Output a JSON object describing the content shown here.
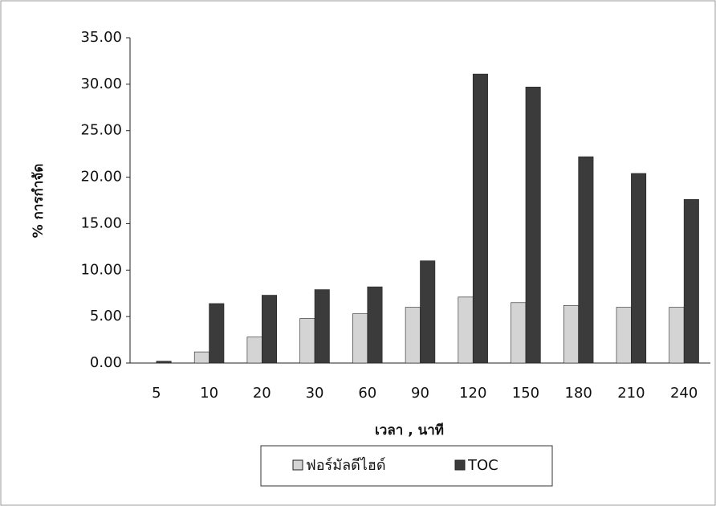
{
  "chart_data": {
    "type": "bar",
    "y_label": "% การกำจัด",
    "x_label": "เวลา , นาที",
    "categories": [
      "5",
      "10",
      "20",
      "30",
      "60",
      "90",
      "120",
      "150",
      "180",
      "210",
      "240"
    ],
    "series": [
      {
        "name": "ฟอร์มัลดีไฮด์",
        "color": "#d4d4d4",
        "values": [
          0,
          1.2,
          2.8,
          4.8,
          5.3,
          6.0,
          7.1,
          6.5,
          6.2,
          6.0,
          6.0
        ]
      },
      {
        "name": "TOC",
        "color": "#3b3b3b",
        "values": [
          0.2,
          6.4,
          7.3,
          7.9,
          8.2,
          11.0,
          31.1,
          29.7,
          22.2,
          20.4,
          17.6
        ]
      }
    ],
    "ylim": [
      0,
      35
    ],
    "yticks": [
      {
        "value": 0,
        "label": "0.00"
      },
      {
        "value": 5,
        "label": "5.00"
      },
      {
        "value": 10,
        "label": "10.00"
      },
      {
        "value": 15,
        "label": "15.00"
      },
      {
        "value": 20,
        "label": "20.00"
      },
      {
        "value": 25,
        "label": "25.00"
      },
      {
        "value": 30,
        "label": "30.00"
      },
      {
        "value": 35,
        "label": "35.00"
      }
    ],
    "legend": "bottom"
  }
}
